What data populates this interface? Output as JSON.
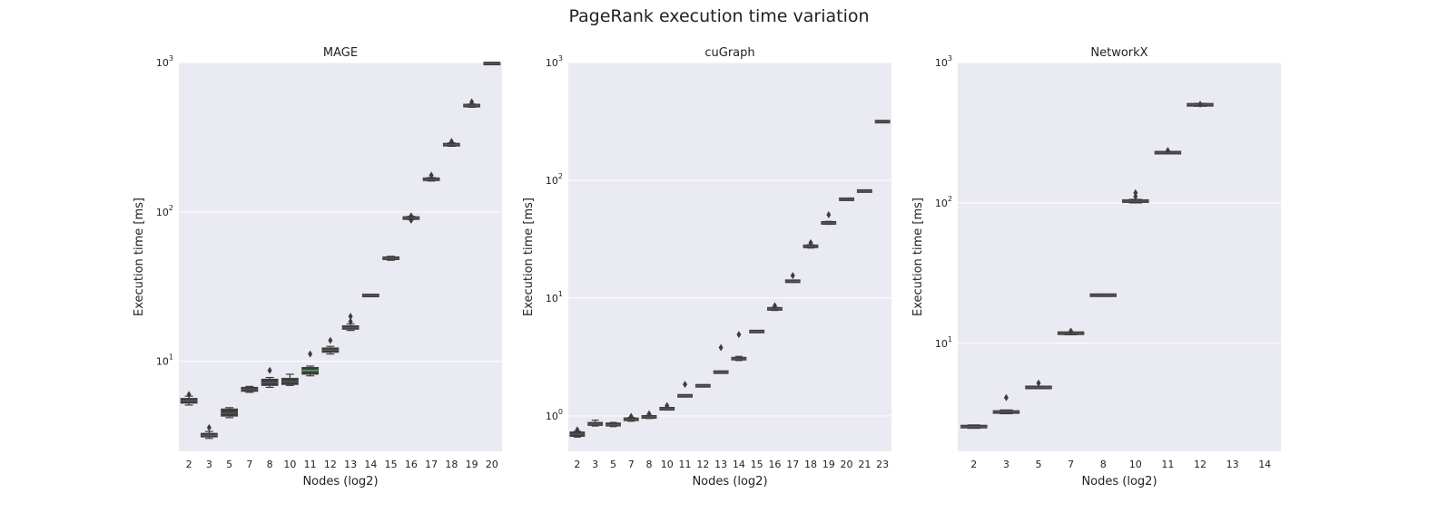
{
  "title": "PageRank execution time variation",
  "colors": {
    "box": "#3d3d3d",
    "plot_bg": "#eaeaf2",
    "grid": "#ffffff",
    "median_highlight": "#55a868"
  },
  "chart_data": [
    {
      "type": "box",
      "title": "MAGE",
      "xlabel": "Nodes (log2)",
      "ylabel": "Execution time [ms]",
      "yscale": "log",
      "ylim": [
        2.5,
        1000
      ],
      "yticks": [
        {
          "value": 10,
          "base": "10",
          "exp": "1"
        },
        {
          "value": 100,
          "base": "10",
          "exp": "2"
        },
        {
          "value": 1000,
          "base": "10",
          "exp": "3"
        }
      ],
      "grid": true,
      "categories": [
        "2",
        "3",
        "5",
        "7",
        "8",
        "10",
        "11",
        "12",
        "13",
        "14",
        "15",
        "16",
        "17",
        "18",
        "19",
        "20"
      ],
      "boxes": [
        {
          "median": 5.45,
          "q1": 5.25,
          "q3": 5.65,
          "min": 5.1,
          "max": 5.85,
          "fliers": [
            6.0
          ]
        },
        {
          "median": 3.2,
          "q1": 3.12,
          "q3": 3.3,
          "min": 3.05,
          "max": 3.4,
          "fliers": [
            3.6
          ]
        },
        {
          "median": 4.5,
          "q1": 4.3,
          "q3": 4.8,
          "min": 4.2,
          "max": 4.9,
          "fliers": []
        },
        {
          "median": 6.5,
          "q1": 6.3,
          "q3": 6.7,
          "min": 6.2,
          "max": 6.8,
          "fliers": []
        },
        {
          "median": 7.2,
          "q1": 6.9,
          "q3": 7.6,
          "min": 6.7,
          "max": 7.8,
          "fliers": [
            8.7
          ]
        },
        {
          "median": 7.3,
          "q1": 7.0,
          "q3": 7.7,
          "min": 6.9,
          "max": 8.2,
          "fliers": []
        },
        {
          "median": 8.7,
          "q1": 8.2,
          "q3": 9.1,
          "min": 8.0,
          "max": 9.3,
          "fliers": [
            11.2
          ],
          "median_color": "#55a868"
        },
        {
          "median": 11.9,
          "q1": 11.5,
          "q3": 12.3,
          "min": 11.2,
          "max": 12.6,
          "fliers": [
            13.8
          ]
        },
        {
          "median": 16.8,
          "q1": 16.4,
          "q3": 17.3,
          "min": 16.1,
          "max": 17.8,
          "fliers": [
            18.5,
            20.0
          ]
        },
        {
          "median": 27.6,
          "q1": 27.3,
          "q3": 27.9,
          "min": 27.1,
          "max": 28.1,
          "fliers": []
        },
        {
          "median": 49,
          "q1": 48,
          "q3": 50,
          "min": 47.5,
          "max": 50.5,
          "fliers": []
        },
        {
          "median": 91,
          "q1": 89.5,
          "q3": 92.5,
          "min": 89,
          "max": 93.5,
          "fliers": [
            88,
            94
          ]
        },
        {
          "median": 165,
          "q1": 163,
          "q3": 168,
          "min": 161,
          "max": 170,
          "fliers": [
            176
          ]
        },
        {
          "median": 282,
          "q1": 278,
          "q3": 286,
          "min": 275,
          "max": 290,
          "fliers": [
            296
          ]
        },
        {
          "median": 515,
          "q1": 508,
          "q3": 522,
          "min": 502,
          "max": 528,
          "fliers": [
            545
          ]
        },
        {
          "median": 985,
          "q1": 975,
          "q3": 995,
          "min": 968,
          "max": 1000,
          "fliers": []
        }
      ]
    },
    {
      "type": "box",
      "title": "cuGraph",
      "xlabel": "Nodes (log2)",
      "ylabel": "Execution time [ms]",
      "yscale": "log",
      "ylim": [
        0.5,
        1000
      ],
      "yticks": [
        {
          "value": 1,
          "base": "10",
          "exp": "0"
        },
        {
          "value": 10,
          "base": "10",
          "exp": "1"
        },
        {
          "value": 100,
          "base": "10",
          "exp": "2"
        },
        {
          "value": 1000,
          "base": "10",
          "exp": "3"
        }
      ],
      "grid": true,
      "categories": [
        "2",
        "3",
        "5",
        "7",
        "8",
        "10",
        "11",
        "12",
        "13",
        "14",
        "15",
        "16",
        "17",
        "18",
        "19",
        "20",
        "21",
        "23"
      ],
      "boxes": [
        {
          "median": 0.7,
          "q1": 0.67,
          "q3": 0.73,
          "min": 0.66,
          "max": 0.74,
          "fliers": [
            0.76
          ]
        },
        {
          "median": 0.85,
          "q1": 0.83,
          "q3": 0.88,
          "min": 0.82,
          "max": 0.92,
          "fliers": []
        },
        {
          "median": 0.84,
          "q1": 0.82,
          "q3": 0.87,
          "min": 0.81,
          "max": 0.88,
          "fliers": []
        },
        {
          "median": 0.93,
          "q1": 0.91,
          "q3": 0.96,
          "min": 0.9,
          "max": 0.97,
          "fliers": [
            0.99
          ]
        },
        {
          "median": 0.98,
          "q1": 0.96,
          "q3": 1.0,
          "min": 0.95,
          "max": 1.01,
          "fliers": [
            1.04
          ]
        },
        {
          "median": 1.15,
          "q1": 1.13,
          "q3": 1.17,
          "min": 1.12,
          "max": 1.18,
          "fliers": [
            1.22
          ]
        },
        {
          "median": 1.48,
          "q1": 1.46,
          "q3": 1.5,
          "min": 1.45,
          "max": 1.51,
          "fliers": [
            1.85
          ]
        },
        {
          "median": 1.8,
          "q1": 1.79,
          "q3": 1.81,
          "min": 1.78,
          "max": 1.82,
          "fliers": []
        },
        {
          "median": 2.35,
          "q1": 2.32,
          "q3": 2.38,
          "min": 2.3,
          "max": 2.4,
          "fliers": [
            3.8
          ]
        },
        {
          "median": 3.05,
          "q1": 3.0,
          "q3": 3.12,
          "min": 2.95,
          "max": 3.2,
          "fliers": [
            4.9
          ]
        },
        {
          "median": 5.2,
          "q1": 5.18,
          "q3": 5.22,
          "min": 5.16,
          "max": 5.24,
          "fliers": []
        },
        {
          "median": 8.1,
          "q1": 7.95,
          "q3": 8.25,
          "min": 7.85,
          "max": 8.35,
          "fliers": [
            8.6
          ]
        },
        {
          "median": 13.9,
          "q1": 13.7,
          "q3": 14.1,
          "min": 13.6,
          "max": 14.2,
          "fliers": [
            15.5
          ]
        },
        {
          "median": 27.5,
          "q1": 27.0,
          "q3": 28.0,
          "min": 26.6,
          "max": 28.4,
          "fliers": [
            29.5
          ]
        },
        {
          "median": 43.5,
          "q1": 42.8,
          "q3": 44.2,
          "min": 42.3,
          "max": 44.8,
          "fliers": [
            51
          ]
        },
        {
          "median": 69,
          "q1": 68.5,
          "q3": 69.5,
          "min": 68.2,
          "max": 69.8,
          "fliers": []
        },
        {
          "median": 81,
          "q1": 80.5,
          "q3": 81.5,
          "min": 80.2,
          "max": 81.8,
          "fliers": []
        },
        {
          "median": 315,
          "q1": 313,
          "q3": 317,
          "min": 312,
          "max": 318,
          "fliers": []
        }
      ]
    },
    {
      "type": "box",
      "title": "NetworkX",
      "xlabel": "Nodes (log2)",
      "ylabel": "Execution time [ms]",
      "yscale": "log",
      "ylim": [
        1.7,
        1000
      ],
      "yticks": [
        {
          "value": 10,
          "base": "10",
          "exp": "1"
        },
        {
          "value": 100,
          "base": "10",
          "exp": "2"
        },
        {
          "value": 1000,
          "base": "10",
          "exp": "3"
        }
      ],
      "grid": true,
      "categories": [
        "2",
        "3",
        "5",
        "7",
        "8",
        "10",
        "11",
        "12",
        "13",
        "14"
      ],
      "boxes": [
        {
          "median": 2.55,
          "q1": 2.5,
          "q3": 2.6,
          "min": 2.48,
          "max": 2.62,
          "fliers": []
        },
        {
          "median": 3.25,
          "q1": 3.18,
          "q3": 3.3,
          "min": 3.15,
          "max": 3.35,
          "fliers": [
            4.1
          ]
        },
        {
          "median": 4.85,
          "q1": 4.78,
          "q3": 4.92,
          "min": 4.75,
          "max": 4.95,
          "fliers": [
            5.2
          ]
        },
        {
          "median": 11.8,
          "q1": 11.65,
          "q3": 11.95,
          "min": 11.5,
          "max": 12.0,
          "fliers": [
            12.2
          ]
        },
        {
          "median": 22.0,
          "q1": 21.8,
          "q3": 22.2,
          "min": 21.6,
          "max": 22.4,
          "fliers": []
        },
        {
          "median": 103,
          "q1": 101,
          "q3": 105,
          "min": 100,
          "max": 106,
          "fliers": [
            111,
            118
          ]
        },
        {
          "median": 228,
          "q1": 226,
          "q3": 230,
          "min": 225,
          "max": 231,
          "fliers": [
            236
          ]
        },
        {
          "median": 500,
          "q1": 492,
          "q3": 508,
          "min": 488,
          "max": 512,
          "fliers": [
            505
          ]
        },
        null,
        null
      ]
    }
  ]
}
